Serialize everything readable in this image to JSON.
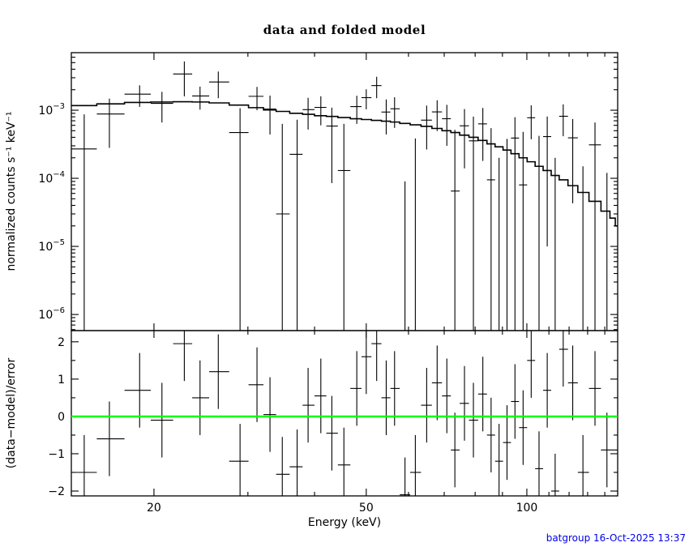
{
  "header": {
    "title": "data and folded model"
  },
  "footer": {
    "text": "batgroup 16-Oct-2025 13:37"
  },
  "axes": {
    "xlabel": "Energy (keV)",
    "ylabel_top": "normalized counts s⁻¹ keV⁻¹",
    "ylabel_bottom": "(data−model)/error"
  },
  "colors": {
    "frame": "#000000",
    "data": "#000000",
    "model_line": "#000000",
    "zero_line": "#00ff00",
    "footer_text": "#0000ee",
    "background": "#ffffff"
  },
  "chart_data": [
    {
      "type": "scatter",
      "panel": "spectrum",
      "title": "data and folded model",
      "xlabel": "Energy (keV)",
      "ylabel": "normalized counts s⁻¹ keV⁻¹",
      "xscale": "log",
      "yscale": "log",
      "xlim": [
        14,
        148
      ],
      "ylim": [
        5.8e-07,
        0.007
      ],
      "x_major_ticks": [
        20,
        50,
        100
      ],
      "x_minor_ticks": [
        30,
        40,
        60,
        70,
        80,
        90,
        110,
        120,
        130,
        140
      ],
      "y_major_ticks": [
        0.001,
        0.0001,
        1e-05,
        1e-06
      ],
      "grid": false,
      "legend": "none",
      "model_step": {
        "x": [
          14.8,
          16.5,
          18.8,
          20.7,
          22.8,
          24.4,
          26.4,
          29.0,
          31.2,
          33.0,
          34.8,
          37.1,
          38.9,
          41.1,
          43.1,
          45.4,
          48.0,
          50.0,
          52.3,
          54.5,
          56.5,
          59.1,
          61.8,
          64.9,
          67.9,
          70.8,
          73.3,
          76.4,
          79.4,
          82.7,
          85.7,
          88.7,
          91.8,
          95.0,
          98.4,
          101.9,
          105.4,
          109.2,
          113.0,
          117.0,
          121.9,
          127.4,
          134.2,
          141.3,
          145.0,
          148.0
        ],
        "y": [
          0.00117,
          0.00124,
          0.0013,
          0.00132,
          0.00133,
          0.00132,
          0.00128,
          0.00119,
          0.00109,
          0.00101,
          0.00096,
          0.0009,
          0.00087,
          0.00083,
          0.00081,
          0.00078,
          0.00075,
          0.00073,
          0.00071,
          0.00069,
          0.00067,
          0.00064,
          0.00061,
          0.00058,
          0.00054,
          0.0005,
          0.00047,
          0.00043,
          0.0004,
          0.00036,
          0.00032,
          0.00029,
          0.00026,
          0.00023,
          0.0002,
          0.000175,
          0.00015,
          0.00013,
          0.00011,
          9.5e-05,
          7.8e-05,
          6.2e-05,
          4.6e-05,
          3.3e-05,
          2.6e-05,
          2e-05
        ]
      },
      "points_format": [
        "energy_keV",
        "value",
        "err_lo",
        "err_hi"
      ],
      "points": [
        [
          14.8,
          0.00027,
          null,
          0.00087
        ],
        [
          16.5,
          0.00088,
          0.00028,
          0.00148
        ],
        [
          18.8,
          0.00172,
          0.00112,
          0.00232
        ],
        [
          20.7,
          0.00126,
          0.00066,
          0.00186
        ],
        [
          22.8,
          0.0034,
          0.0016,
          0.0052
        ],
        [
          24.4,
          0.00162,
          0.00102,
          0.00222
        ],
        [
          26.4,
          0.0026,
          0.0015,
          0.0037
        ],
        [
          29.0,
          0.00047,
          null,
          0.00107
        ],
        [
          31.2,
          0.0016,
          0.001,
          0.0022
        ],
        [
          33.0,
          0.00104,
          0.00044,
          0.00164
        ],
        [
          34.8,
          3e-05,
          null,
          0.00063
        ],
        [
          37.1,
          0.000225,
          null,
          0.000725
        ],
        [
          38.9,
          0.00102,
          0.00052,
          0.00152
        ],
        [
          41.1,
          0.0011,
          0.0006,
          0.0016
        ],
        [
          43.1,
          0.000585,
          8.5e-05,
          0.00109
        ],
        [
          45.4,
          0.00013,
          null,
          0.00063
        ],
        [
          48.0,
          0.00113,
          0.00063,
          0.00163
        ],
        [
          50.0,
          0.00153,
          0.00103,
          0.00203
        ],
        [
          52.3,
          0.0023,
          0.0015,
          0.0031
        ],
        [
          54.5,
          0.00094,
          0.00044,
          0.00144
        ],
        [
          56.5,
          0.00105,
          0.00055,
          0.00155
        ],
        [
          59.1,
          null,
          null,
          9e-05
        ],
        [
          61.8,
          null,
          null,
          0.000385
        ],
        [
          64.9,
          0.000715,
          0.000265,
          0.00117
        ],
        [
          67.9,
          0.000945,
          0.000495,
          0.0014
        ],
        [
          70.8,
          0.00075,
          0.0003,
          0.0012
        ],
        [
          73.3,
          6.5e-05,
          null,
          0.000515
        ],
        [
          76.4,
          0.00059,
          0.00014,
          0.00104
        ],
        [
          79.4,
          0.000355,
          null,
          0.000805
        ],
        [
          82.7,
          0.00063,
          0.00018,
          0.00108
        ],
        [
          85.7,
          9.5e-05,
          null,
          0.000545
        ],
        [
          88.7,
          null,
          null,
          0.0002
        ],
        [
          91.8,
          null,
          null,
          0.00038
        ],
        [
          95.0,
          0.00039,
          null,
          0.00079
        ],
        [
          98.4,
          8e-05,
          null,
          0.00048
        ],
        [
          101.9,
          0.000775,
          0.000375,
          0.00118
        ],
        [
          105.4,
          null,
          null,
          0.00042
        ],
        [
          109.2,
          0.00041,
          1e-05,
          0.00081
        ],
        [
          113.0,
          null,
          null,
          0.0002
        ],
        [
          117.0,
          0.000815,
          0.000415,
          0.00122
        ],
        [
          121.9,
          0.000393,
          4.3e-05,
          0.000743
        ],
        [
          127.4,
          null,
          null,
          0.00015
        ],
        [
          134.2,
          0.00031,
          null,
          0.00066
        ],
        [
          141.3,
          null,
          null,
          0.00012
        ]
      ]
    },
    {
      "type": "scatter",
      "panel": "residuals",
      "ylabel": "(data−model)/error",
      "xscale": "log",
      "yscale": "linear",
      "xlim": [
        14,
        148
      ],
      "ylim": [
        -2.13,
        2.3
      ],
      "y_major_ticks": [
        -2,
        -1,
        0,
        1,
        2
      ],
      "y_minor_ticks": [
        -1.5,
        -0.5,
        0.5,
        1.5
      ],
      "zero_line": {
        "y": 0,
        "color": "#00ff00"
      },
      "points_format": [
        "energy_keV",
        "residual",
        "err"
      ],
      "points": [
        [
          14.8,
          -1.5,
          1.0
        ],
        [
          16.5,
          -0.6,
          1.0
        ],
        [
          18.8,
          0.7,
          1.0
        ],
        [
          20.7,
          -0.1,
          1.0
        ],
        [
          22.8,
          1.95,
          1.0
        ],
        [
          24.4,
          0.5,
          1.0
        ],
        [
          26.4,
          1.2,
          1.0
        ],
        [
          29.0,
          -1.2,
          1.0
        ],
        [
          31.2,
          0.85,
          1.0
        ],
        [
          33.0,
          0.05,
          1.0
        ],
        [
          34.8,
          -1.55,
          1.0
        ],
        [
          37.1,
          -1.35,
          1.0
        ],
        [
          38.9,
          0.3,
          1.0
        ],
        [
          41.1,
          0.55,
          1.0
        ],
        [
          43.1,
          -0.45,
          1.0
        ],
        [
          45.4,
          -1.3,
          1.0
        ],
        [
          48.0,
          0.75,
          1.0
        ],
        [
          50.0,
          1.6,
          1.0
        ],
        [
          52.3,
          1.95,
          1.0
        ],
        [
          54.5,
          0.5,
          1.0
        ],
        [
          56.5,
          0.75,
          1.0
        ],
        [
          59.1,
          -2.1,
          1.0
        ],
        [
          61.8,
          -1.5,
          1.0
        ],
        [
          64.9,
          0.3,
          1.0
        ],
        [
          67.9,
          0.9,
          1.0
        ],
        [
          70.8,
          0.55,
          1.0
        ],
        [
          73.3,
          -0.9,
          1.0
        ],
        [
          76.4,
          0.35,
          1.0
        ],
        [
          79.4,
          -0.1,
          1.0
        ],
        [
          82.7,
          0.6,
          1.0
        ],
        [
          85.7,
          -0.5,
          1.0
        ],
        [
          88.7,
          -1.2,
          1.0
        ],
        [
          91.8,
          -0.7,
          1.0
        ],
        [
          95.0,
          0.4,
          1.0
        ],
        [
          98.4,
          -0.3,
          1.0
        ],
        [
          101.9,
          1.5,
          1.0
        ],
        [
          105.4,
          -1.4,
          1.0
        ],
        [
          109.2,
          0.7,
          1.0
        ],
        [
          113.0,
          -2.0,
          1.0
        ],
        [
          117.0,
          1.8,
          1.0
        ],
        [
          121.9,
          0.9,
          1.0
        ],
        [
          127.4,
          -1.5,
          1.0
        ],
        [
          134.2,
          0.75,
          1.0
        ],
        [
          141.3,
          -0.9,
          1.0
        ]
      ]
    }
  ]
}
